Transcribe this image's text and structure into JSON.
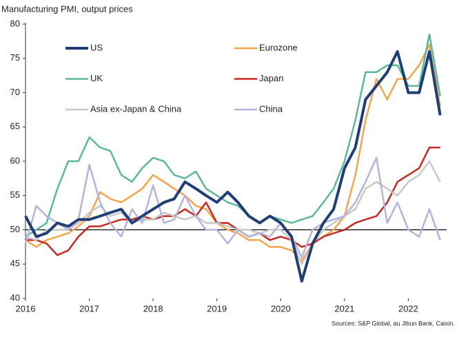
{
  "chart_data": {
    "type": "line",
    "title": "Manufacturing PMI, output prices",
    "source": "Sources: S&P Global, au Jibun Bank, Caixin.",
    "x": [
      2016,
      2016.17,
      2016.33,
      2016.5,
      2016.67,
      2016.83,
      2017,
      2017.17,
      2017.33,
      2017.5,
      2017.67,
      2017.83,
      2018,
      2018.17,
      2018.33,
      2018.5,
      2018.67,
      2018.83,
      2019,
      2019.17,
      2019.33,
      2019.5,
      2019.67,
      2019.83,
      2020,
      2020.17,
      2020.33,
      2020.5,
      2020.67,
      2020.83,
      2021,
      2021.17,
      2021.33,
      2021.5,
      2021.67,
      2021.83,
      2022,
      2022.17,
      2022.33,
      2022.5
    ],
    "xlim": [
      2016,
      2022.6
    ],
    "xticks": [
      2016,
      2017,
      2018,
      2019,
      2020,
      2021,
      2022
    ],
    "ylim": [
      40,
      80
    ],
    "yticks": [
      40,
      45,
      50,
      55,
      60,
      65,
      70,
      75,
      80
    ],
    "reference_line": 50,
    "series": [
      {
        "name": "US",
        "color": "#1f3e78",
        "values": [
          52,
          49,
          49.5,
          51,
          50.5,
          51.5,
          51.5,
          52,
          52.5,
          53,
          51,
          52,
          53,
          54,
          54.5,
          57,
          56,
          55,
          54,
          55.5,
          54,
          52,
          51,
          52,
          51,
          49,
          42.5,
          48,
          51,
          53,
          59,
          62,
          69,
          71,
          73,
          76,
          70,
          70,
          76,
          66.7
        ]
      },
      {
        "name": "Eurozone",
        "color": "#f5a54a",
        "values": [
          48.5,
          47.5,
          48.5,
          49,
          49.5,
          50.5,
          52,
          55.5,
          54.5,
          54,
          55,
          56,
          58,
          57,
          56,
          55,
          53.5,
          53,
          51,
          50,
          49.5,
          48.5,
          48.5,
          47.5,
          47.5,
          47,
          45.5,
          48,
          49,
          50,
          52,
          58,
          66,
          72,
          69,
          72,
          72,
          74,
          77,
          68
        ]
      },
      {
        "name": "UK",
        "color": "#5cb89a",
        "values": [
          49,
          50,
          51,
          56,
          60,
          60,
          63.5,
          62,
          61.5,
          58,
          57,
          59,
          60.5,
          60,
          58,
          57.5,
          58.5,
          56,
          55,
          54,
          53.5,
          52,
          51,
          52,
          51.5,
          51,
          51.5,
          52,
          54,
          56,
          60,
          66,
          73,
          73,
          74,
          74,
          71,
          71,
          78.5,
          69.5
        ]
      },
      {
        "name": "Japan",
        "color": "#c8281e",
        "values": [
          48.5,
          48.5,
          48,
          46.3,
          47,
          49,
          50.5,
          50.5,
          51,
          51.5,
          51.5,
          52,
          51.5,
          52,
          52,
          53,
          52,
          54,
          51,
          51,
          50,
          49,
          49.5,
          48.5,
          49,
          48.5,
          47.5,
          48,
          49,
          49.5,
          50,
          51,
          51.5,
          52,
          54,
          57,
          58,
          59,
          62,
          62
        ]
      },
      {
        "name": "Asia ex-Japan & China",
        "color": "#c8c8c8",
        "values": [
          49,
          48.5,
          50,
          50,
          50,
          51,
          52.5,
          53.5,
          52,
          52.5,
          51,
          51.5,
          51.5,
          52.5,
          52,
          51.5,
          52,
          51,
          51,
          50.5,
          50,
          50,
          49.5,
          50,
          50,
          48.5,
          45,
          48,
          50,
          51,
          52,
          53,
          56,
          57,
          56,
          55,
          57,
          58,
          60,
          57
        ]
      },
      {
        "name": "China",
        "color": "#b3b3dd",
        "values": [
          48,
          53.5,
          52,
          51,
          50,
          51.5,
          59.5,
          54,
          51,
          49,
          53,
          51,
          56.5,
          51,
          51.5,
          55,
          52,
          50,
          50,
          48,
          50,
          49,
          49.5,
          49,
          51,
          49,
          46,
          50,
          51,
          51.5,
          52,
          54,
          57,
          60.5,
          51,
          54,
          50,
          49,
          53,
          48.5
        ]
      }
    ]
  }
}
